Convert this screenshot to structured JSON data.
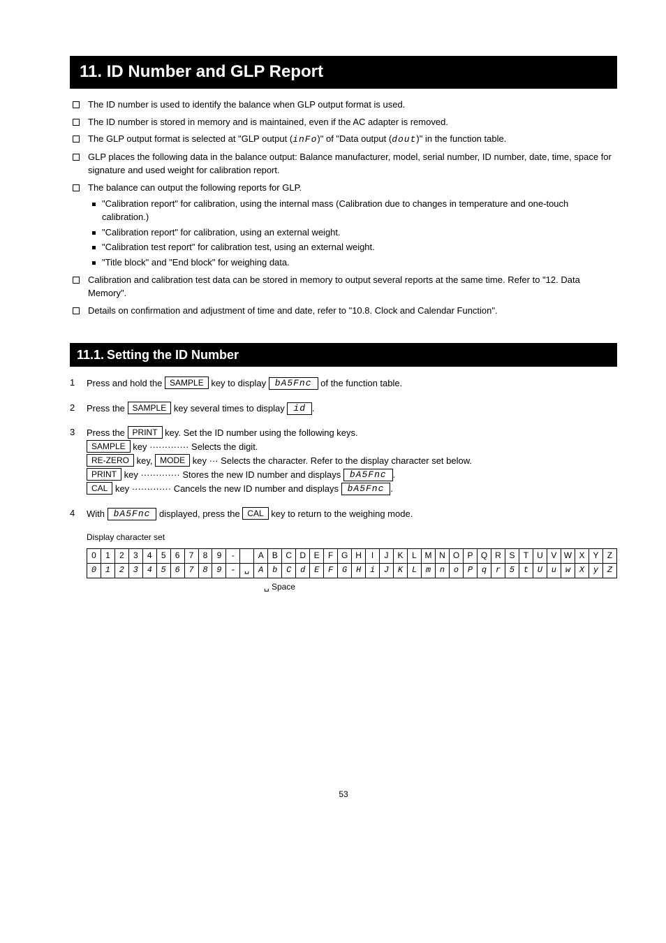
{
  "chapter_title": "11. ID Number and GLP Report",
  "bullets": [
    {
      "text": "The ID number is used to identify the balance when GLP output format is used."
    },
    {
      "text": "The ID number is stored in memory and is maintained, even if the AC adapter is removed."
    },
    {
      "text_parts": [
        "The GLP output format is selected at \"GLP output (",
        {
          "seg": "inFo"
        },
        ")\" of \"Data output (",
        {
          "seg": "dout"
        },
        ")\" in the function table."
      ]
    },
    {
      "text": "GLP places the following data in the balance output: Balance manufacturer, model, serial number, ID number, date, time, space for signature and used weight for calibration report."
    },
    {
      "text": "The balance can output the following reports for GLP.",
      "sub": [
        "\"Calibration report\" for calibration, using the internal mass (Calibration due to changes in temperature and one-touch calibration.)",
        "\"Calibration report\" for calibration, using an external weight.",
        "\"Calibration test report\" for calibration test, using an external weight.",
        "\"Title block\" and \"End block\" for weighing data."
      ]
    },
    {
      "text": "Calibration and calibration test data can be stored in memory to output several reports at the same time. Refer to \"12. Data Memory\"."
    },
    {
      "text": "Details on confirmation and adjustment of time and date, refer to \"10.8. Clock and Calendar Function\"."
    }
  ],
  "section_title": "Setting the ID Number",
  "section_num": "11.1.",
  "steps": [
    {
      "parts": [
        "Press and hold the ",
        {
          "key": "SAMPLE"
        },
        " key to display ",
        {
          "segbox": "bA5Fnc"
        },
        " of the function table."
      ]
    },
    {
      "parts": [
        "Press the ",
        {
          "key": "SAMPLE"
        },
        " key several times to display ",
        {
          "segbox": "id"
        },
        "."
      ]
    },
    {
      "parts": [
        "Press the ",
        {
          "key": "PRINT"
        },
        " key. Set the ID number using the following keys.",
        {
          "br": true
        },
        {
          "key": "SAMPLE"
        },
        " key ············· Selects the digit.",
        {
          "br": true
        },
        {
          "key": "RE-ZERO"
        },
        " key, ",
        {
          "key": "MODE"
        },
        " key ··· Selects the character. Refer to the display character set below.",
        {
          "br": true
        },
        {
          "key": "PRINT"
        },
        " key ············· Stores the new ID number and displays ",
        {
          "segbox": "bA5Fnc"
        },
        ".",
        {
          "br": true
        },
        {
          "key": "CAL"
        },
        " key ············· Cancels the new ID number and displays ",
        {
          "segbox": "bA5Fnc"
        },
        "."
      ]
    },
    {
      "parts": [
        "With ",
        {
          "segbox": "bA5Fnc"
        },
        " displayed, press the ",
        {
          "key": "CAL"
        },
        " key to return to the weighing mode."
      ]
    }
  ],
  "char_table_label": "Display character set",
  "char_row1": [
    "0",
    "1",
    "2",
    "3",
    "4",
    "5",
    "6",
    "7",
    "8",
    "9",
    "-",
    "",
    "A",
    "B",
    "C",
    "D",
    "E",
    "F",
    "G",
    "H",
    "I",
    "J",
    "K",
    "L",
    "M",
    "N",
    "O",
    "P",
    "Q",
    "R",
    "S",
    "T",
    "U",
    "V",
    "W",
    "X",
    "Y",
    "Z"
  ],
  "char_row2": [
    "0",
    "1",
    "2",
    "3",
    "4",
    "5",
    "6",
    "7",
    "8",
    "9",
    "-",
    "␣",
    "A",
    "b",
    "C",
    "d",
    "E",
    "F",
    "G",
    "H",
    "i",
    "J",
    "K",
    "L",
    "m",
    "n",
    "o",
    "P",
    "q",
    "r",
    "5",
    "t",
    "U",
    "u",
    "w",
    "X",
    "y",
    "Z"
  ],
  "space_note": "␣ Space",
  "page_number": "53"
}
